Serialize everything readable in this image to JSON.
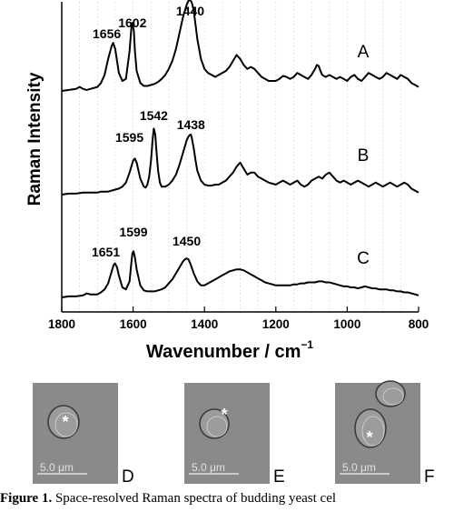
{
  "chart_data": {
    "type": "line",
    "xlabel": "Wavenumber / cm",
    "xlabel_sup": "−1",
    "ylabel": "Raman Intensity",
    "xlim": [
      1800,
      800
    ],
    "xticks": [
      "1800",
      "1600",
      "1400",
      "1200",
      "1000",
      "800"
    ],
    "grid": true,
    "reversed_x": true,
    "series": [
      {
        "name": "A",
        "peaks": [
          "1656",
          "1602",
          "1440"
        ],
        "x": [
          1800,
          1780,
          1760,
          1750,
          1740,
          1730,
          1720,
          1700,
          1690,
          1680,
          1670,
          1660,
          1656,
          1650,
          1645,
          1640,
          1630,
          1620,
          1610,
          1605,
          1602,
          1598,
          1595,
          1590,
          1580,
          1570,
          1560,
          1550,
          1540,
          1530,
          1520,
          1510,
          1500,
          1490,
          1480,
          1470,
          1460,
          1450,
          1445,
          1440,
          1435,
          1430,
          1425,
          1420,
          1410,
          1400,
          1390,
          1380,
          1370,
          1360,
          1350,
          1340,
          1330,
          1320,
          1310,
          1300,
          1290,
          1280,
          1270,
          1260,
          1250,
          1240,
          1230,
          1220,
          1210,
          1200,
          1190,
          1180,
          1170,
          1160,
          1150,
          1140,
          1130,
          1120,
          1110,
          1100,
          1090,
          1085,
          1080,
          1075,
          1070,
          1060,
          1050,
          1040,
          1030,
          1020,
          1010,
          1000,
          990,
          980,
          970,
          960,
          950,
          940,
          930,
          920,
          910,
          900,
          890,
          880,
          870,
          860,
          850,
          840,
          830,
          820,
          810,
          800
        ],
        "values": [
          0.0,
          0.01,
          0.02,
          0.04,
          0.02,
          0.01,
          0.02,
          0.04,
          0.08,
          0.16,
          0.32,
          0.45,
          0.48,
          0.42,
          0.3,
          0.18,
          0.1,
          0.12,
          0.4,
          0.62,
          0.68,
          0.6,
          0.4,
          0.2,
          0.08,
          0.05,
          0.05,
          0.06,
          0.07,
          0.09,
          0.12,
          0.16,
          0.22,
          0.3,
          0.42,
          0.58,
          0.74,
          0.86,
          0.9,
          0.91,
          0.88,
          0.8,
          0.66,
          0.52,
          0.32,
          0.22,
          0.18,
          0.16,
          0.14,
          0.16,
          0.18,
          0.2,
          0.24,
          0.3,
          0.36,
          0.32,
          0.26,
          0.22,
          0.24,
          0.22,
          0.18,
          0.14,
          0.12,
          0.1,
          0.1,
          0.1,
          0.12,
          0.15,
          0.14,
          0.12,
          0.14,
          0.18,
          0.16,
          0.14,
          0.12,
          0.16,
          0.22,
          0.26,
          0.25,
          0.2,
          0.16,
          0.14,
          0.16,
          0.14,
          0.12,
          0.14,
          0.12,
          0.1,
          0.14,
          0.16,
          0.12,
          0.1,
          0.14,
          0.18,
          0.16,
          0.14,
          0.12,
          0.14,
          0.18,
          0.16,
          0.14,
          0.12,
          0.16,
          0.14,
          0.12,
          0.08,
          0.06,
          0.04
        ]
      },
      {
        "name": "B",
        "peaks": [
          "1595",
          "1542",
          "1438"
        ],
        "x": [
          1800,
          1780,
          1760,
          1740,
          1720,
          1700,
          1690,
          1680,
          1670,
          1660,
          1650,
          1640,
          1630,
          1620,
          1610,
          1600,
          1595,
          1590,
          1580,
          1570,
          1565,
          1560,
          1555,
          1550,
          1545,
          1542,
          1538,
          1535,
          1530,
          1525,
          1520,
          1510,
          1500,
          1490,
          1480,
          1470,
          1460,
          1450,
          1445,
          1440,
          1438,
          1435,
          1430,
          1425,
          1420,
          1410,
          1400,
          1390,
          1380,
          1370,
          1360,
          1350,
          1340,
          1330,
          1320,
          1310,
          1300,
          1290,
          1280,
          1270,
          1260,
          1250,
          1240,
          1230,
          1220,
          1210,
          1200,
          1190,
          1180,
          1170,
          1160,
          1150,
          1140,
          1130,
          1120,
          1110,
          1100,
          1090,
          1080,
          1070,
          1060,
          1050,
          1040,
          1030,
          1020,
          1010,
          1000,
          990,
          980,
          970,
          960,
          950,
          940,
          930,
          920,
          910,
          900,
          890,
          880,
          870,
          860,
          850,
          840,
          830,
          820,
          810,
          800
        ],
        "values": [
          0.0,
          0.01,
          0.01,
          0.02,
          0.02,
          0.02,
          0.03,
          0.03,
          0.03,
          0.04,
          0.05,
          0.06,
          0.08,
          0.12,
          0.22,
          0.34,
          0.36,
          0.32,
          0.16,
          0.08,
          0.07,
          0.1,
          0.18,
          0.34,
          0.56,
          0.66,
          0.6,
          0.46,
          0.24,
          0.12,
          0.08,
          0.08,
          0.1,
          0.14,
          0.2,
          0.3,
          0.42,
          0.54,
          0.58,
          0.6,
          0.6,
          0.56,
          0.46,
          0.34,
          0.24,
          0.14,
          0.1,
          0.09,
          0.09,
          0.1,
          0.1,
          0.12,
          0.14,
          0.18,
          0.22,
          0.28,
          0.32,
          0.26,
          0.2,
          0.22,
          0.22,
          0.18,
          0.16,
          0.14,
          0.12,
          0.11,
          0.1,
          0.12,
          0.14,
          0.12,
          0.1,
          0.12,
          0.14,
          0.1,
          0.08,
          0.1,
          0.14,
          0.16,
          0.18,
          0.16,
          0.2,
          0.22,
          0.18,
          0.14,
          0.12,
          0.14,
          0.12,
          0.1,
          0.12,
          0.14,
          0.12,
          0.1,
          0.08,
          0.1,
          0.12,
          0.1,
          0.08,
          0.1,
          0.12,
          0.1,
          0.08,
          0.1,
          0.12,
          0.1,
          0.06,
          0.04,
          0.02
        ]
      },
      {
        "name": "C",
        "peaks": [
          "1651",
          "1599",
          "1450"
        ],
        "x": [
          1800,
          1780,
          1760,
          1740,
          1730,
          1720,
          1700,
          1690,
          1680,
          1670,
          1660,
          1655,
          1651,
          1645,
          1640,
          1630,
          1620,
          1610,
          1605,
          1602,
          1599,
          1595,
          1590,
          1580,
          1570,
          1560,
          1550,
          1540,
          1530,
          1520,
          1510,
          1500,
          1490,
          1480,
          1470,
          1460,
          1455,
          1450,
          1445,
          1440,
          1430,
          1420,
          1410,
          1400,
          1390,
          1380,
          1370,
          1360,
          1350,
          1340,
          1330,
          1320,
          1310,
          1300,
          1290,
          1280,
          1270,
          1260,
          1250,
          1240,
          1230,
          1220,
          1210,
          1200,
          1190,
          1180,
          1170,
          1160,
          1150,
          1140,
          1130,
          1120,
          1110,
          1100,
          1090,
          1080,
          1070,
          1060,
          1050,
          1040,
          1030,
          1020,
          1010,
          1000,
          990,
          980,
          970,
          960,
          950,
          940,
          930,
          920,
          910,
          900,
          890,
          880,
          870,
          860,
          850,
          840,
          830,
          820,
          810,
          800
        ],
        "values": [
          0.0,
          0.01,
          0.01,
          0.02,
          0.04,
          0.03,
          0.03,
          0.05,
          0.08,
          0.14,
          0.26,
          0.32,
          0.34,
          0.3,
          0.22,
          0.1,
          0.08,
          0.16,
          0.34,
          0.44,
          0.46,
          0.4,
          0.28,
          0.12,
          0.07,
          0.06,
          0.06,
          0.06,
          0.07,
          0.08,
          0.1,
          0.14,
          0.18,
          0.24,
          0.3,
          0.36,
          0.38,
          0.39,
          0.38,
          0.34,
          0.24,
          0.16,
          0.12,
          0.12,
          0.14,
          0.16,
          0.18,
          0.2,
          0.22,
          0.24,
          0.26,
          0.27,
          0.28,
          0.28,
          0.27,
          0.25,
          0.23,
          0.21,
          0.19,
          0.17,
          0.15,
          0.14,
          0.13,
          0.12,
          0.12,
          0.12,
          0.12,
          0.12,
          0.13,
          0.13,
          0.14,
          0.14,
          0.15,
          0.15,
          0.15,
          0.16,
          0.16,
          0.15,
          0.15,
          0.14,
          0.13,
          0.12,
          0.11,
          0.11,
          0.1,
          0.1,
          0.09,
          0.1,
          0.11,
          0.1,
          0.09,
          0.09,
          0.08,
          0.08,
          0.08,
          0.07,
          0.07,
          0.06,
          0.06,
          0.05,
          0.05,
          0.04,
          0.03,
          0.02
        ]
      }
    ]
  },
  "panels": [
    {
      "letter": "D",
      "scale_label": "5.0 μm",
      "marker": "*"
    },
    {
      "letter": "E",
      "scale_label": "5.0 μm",
      "marker": "*"
    },
    {
      "letter": "F",
      "scale_label": "5.0 μm",
      "marker": "*"
    }
  ],
  "caption": {
    "label": "Figure 1.",
    "text": "Space-resolved Raman spectra of budding yeast cel"
  },
  "colors": {
    "line": "#000000",
    "grid": "#c8c8c8",
    "micrograph_bg": "#8a8a8a",
    "scale_text": "#e0e0e0"
  }
}
